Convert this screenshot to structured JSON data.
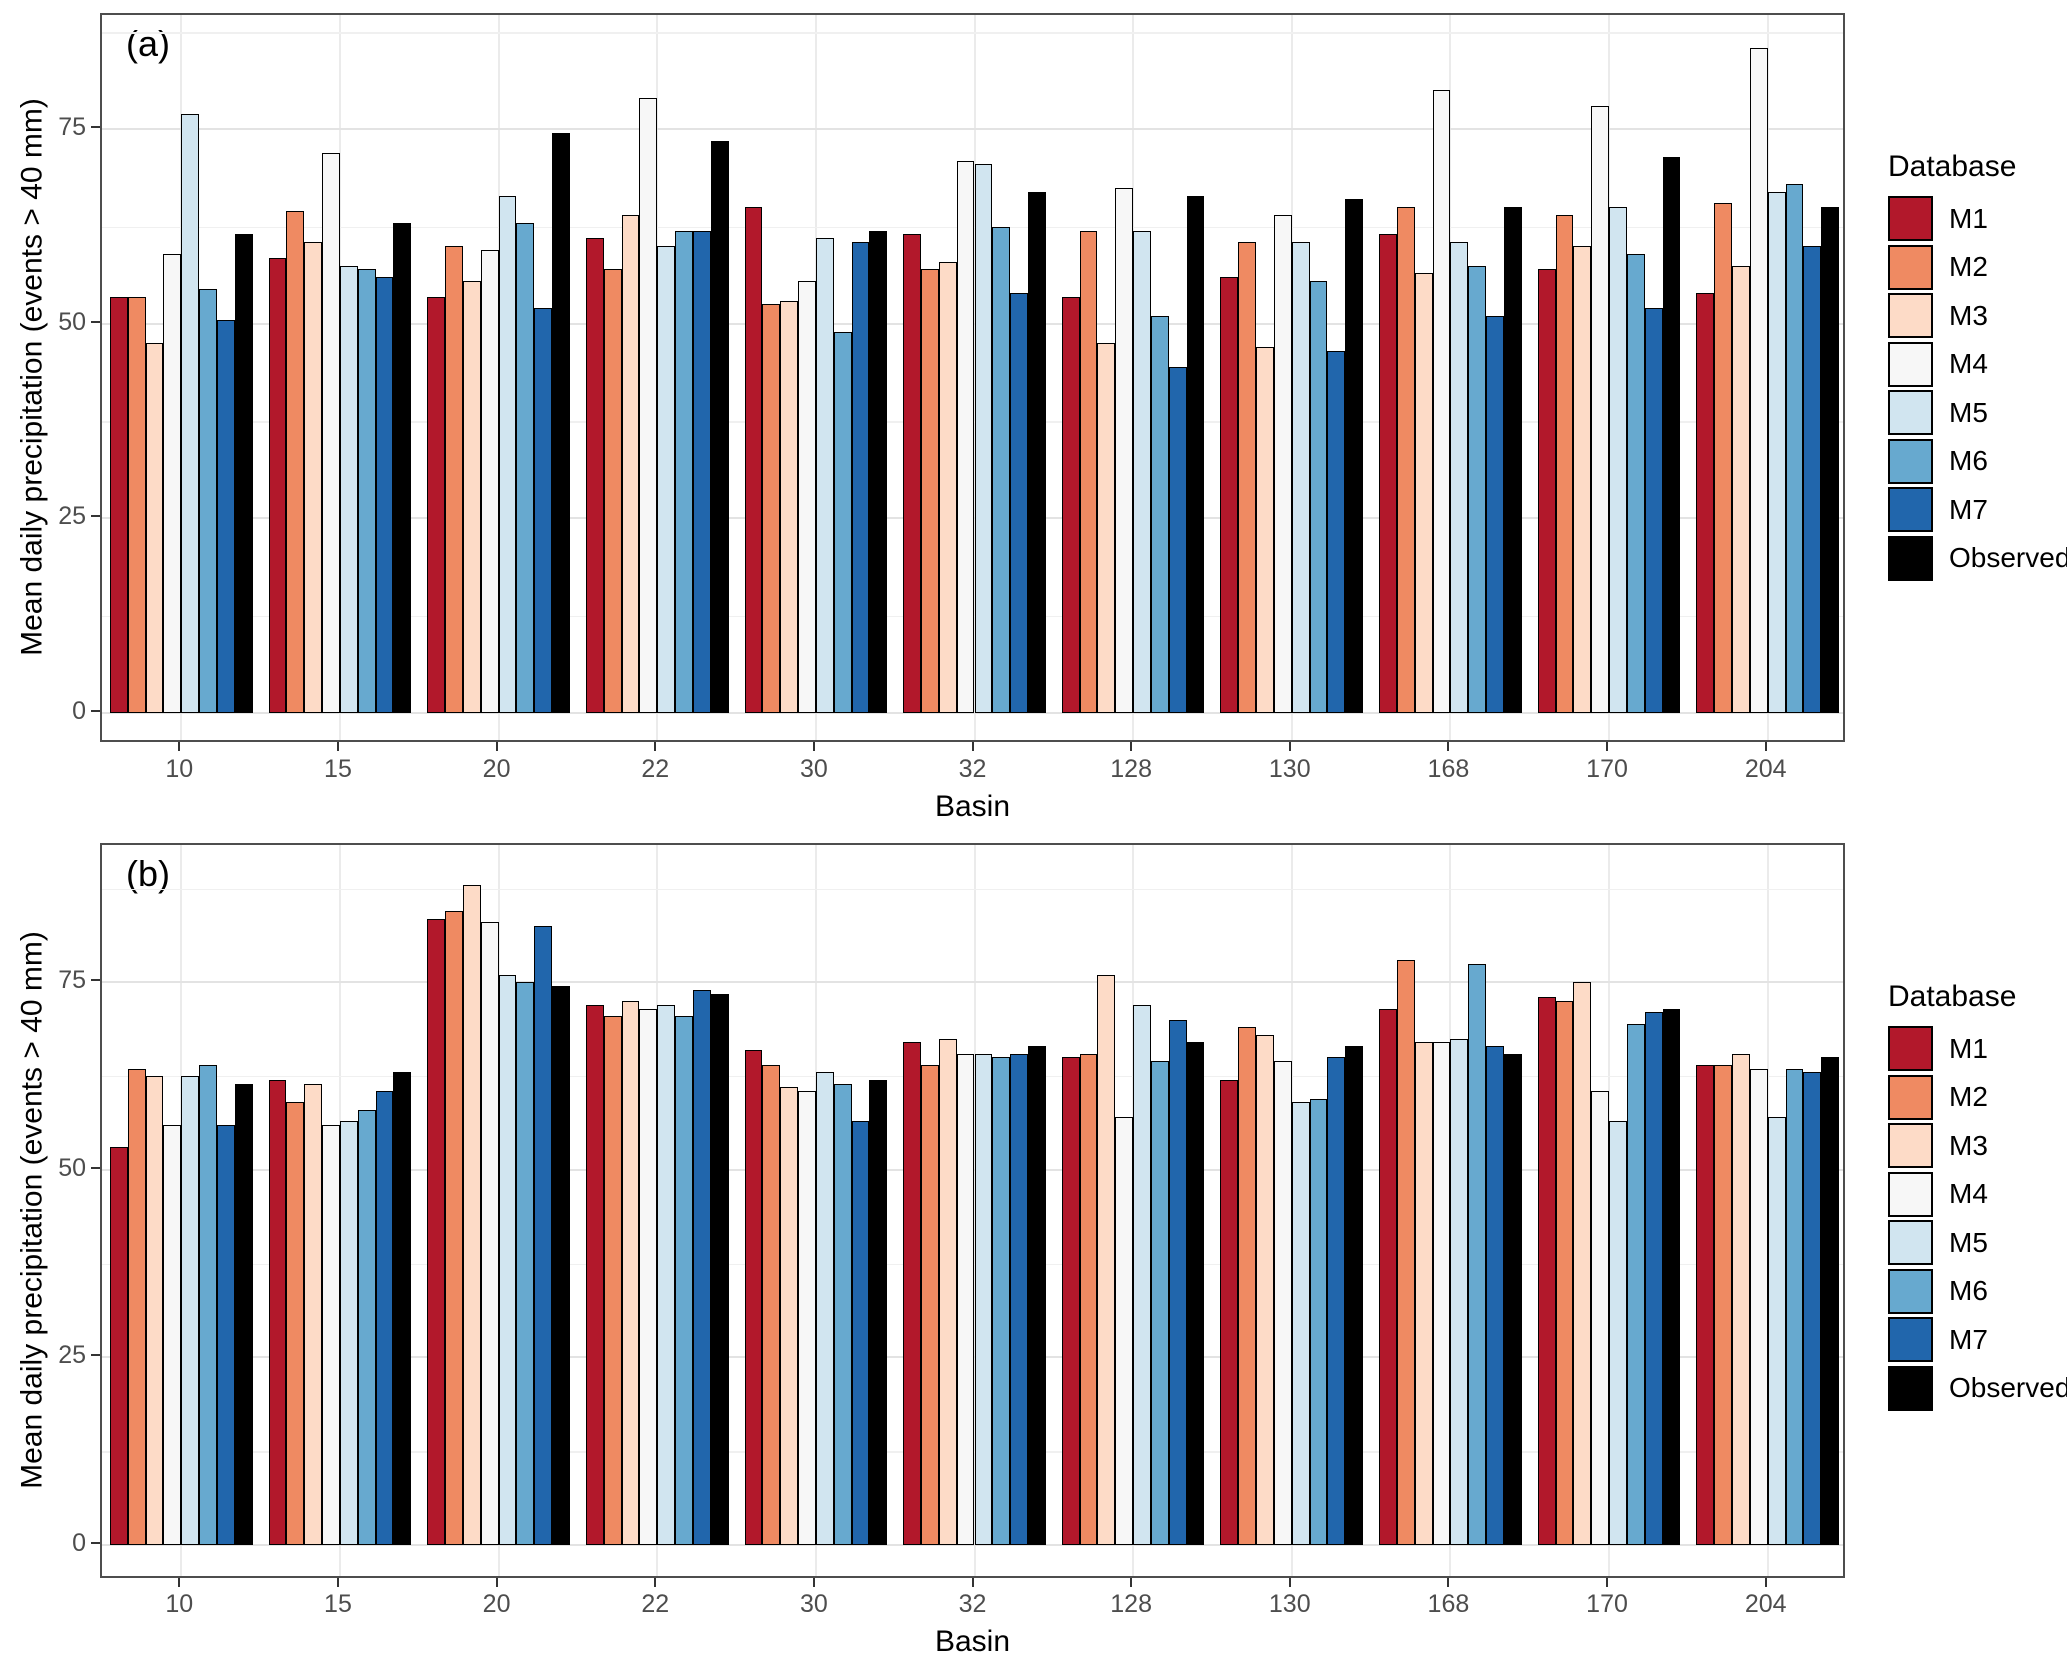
{
  "chart_data": [
    {
      "panel_label": "(a)",
      "type": "bar",
      "ylabel": "Mean daily precipitation (events > 40 mm)",
      "xlabel": "Basin",
      "categories": [
        "10",
        "15",
        "20",
        "22",
        "30",
        "32",
        "128",
        "130",
        "168",
        "170",
        "204"
      ],
      "y_ticks": [
        0,
        25,
        50,
        75
      ],
      "y_minor_ticks": [
        12.5,
        37.5,
        62.5,
        87.5
      ],
      "ylim": [
        0,
        89.7
      ],
      "grid": true,
      "bar_border_color": "#000000",
      "legend": {
        "title": "Database",
        "position": "right",
        "entries": [
          "M1",
          "M2",
          "M3",
          "M4",
          "M5",
          "M6",
          "M7",
          "Observed"
        ]
      },
      "series": [
        {
          "name": "M1",
          "color": "#b2182b",
          "values": [
            53.5,
            58.5,
            53.5,
            61,
            65,
            61.5,
            53.5,
            56,
            61.5,
            57,
            54
          ]
        },
        {
          "name": "M2",
          "color": "#ef8a62",
          "values": [
            53.5,
            64.5,
            60,
            57,
            52.5,
            57,
            62,
            60.5,
            65,
            64,
            65.5
          ]
        },
        {
          "name": "M3",
          "color": "#fddbc7",
          "values": [
            47.5,
            60.5,
            55.5,
            64,
            53,
            58,
            47.5,
            47,
            56.5,
            60,
            57.5
          ]
        },
        {
          "name": "M4",
          "color": "#f7f7f7",
          "values": [
            59,
            72,
            59.5,
            79,
            55.5,
            71,
            67.5,
            64,
            80,
            78,
            85.5
          ]
        },
        {
          "name": "M5",
          "color": "#d1e5f0",
          "values": [
            77,
            57.5,
            66.5,
            60,
            61,
            70.5,
            62,
            60.5,
            60.5,
            65,
            67
          ]
        },
        {
          "name": "M6",
          "color": "#67a9cf",
          "values": [
            54.5,
            57,
            63,
            62,
            49,
            62.5,
            51,
            55.5,
            57.5,
            59,
            68
          ]
        },
        {
          "name": "M7",
          "color": "#2166ac",
          "values": [
            50.5,
            56,
            52,
            62,
            60.5,
            54,
            44.5,
            46.5,
            51,
            52,
            60
          ]
        },
        {
          "name": "Observed",
          "color": "#000000",
          "values": [
            61.5,
            63,
            74.5,
            73.5,
            62,
            67,
            66.5,
            66,
            65,
            71.5,
            65
          ]
        }
      ]
    },
    {
      "panel_label": "(b)",
      "type": "bar",
      "ylabel": "Mean daily precipitation (events > 40 mm)",
      "xlabel": "Basin",
      "categories": [
        "10",
        "15",
        "20",
        "22",
        "30",
        "32",
        "128",
        "130",
        "168",
        "170",
        "204"
      ],
      "y_ticks": [
        0,
        25,
        50,
        75
      ],
      "y_minor_ticks": [
        12.5,
        37.5,
        62.5,
        87.5
      ],
      "ylim": [
        0,
        93.3
      ],
      "grid": true,
      "bar_border_color": "#000000",
      "legend": {
        "title": "Database",
        "position": "right",
        "entries": [
          "M1",
          "M2",
          "M3",
          "M4",
          "M5",
          "M6",
          "M7",
          "Observed"
        ]
      },
      "series": [
        {
          "name": "M1",
          "color": "#b2182b",
          "values": [
            53,
            62,
            83.5,
            72,
            66,
            67,
            65,
            62,
            71.5,
            73,
            64
          ]
        },
        {
          "name": "M2",
          "color": "#ef8a62",
          "values": [
            63.5,
            59,
            84.5,
            70.5,
            64,
            64,
            65.5,
            69,
            78,
            72.5,
            64
          ]
        },
        {
          "name": "M3",
          "color": "#fddbc7",
          "values": [
            62.5,
            61.5,
            88,
            72.5,
            61,
            67.5,
            76,
            68,
            67,
            75,
            65.5
          ]
        },
        {
          "name": "M4",
          "color": "#f7f7f7",
          "values": [
            56,
            56,
            83,
            71.5,
            60.5,
            65.5,
            57,
            64.5,
            67,
            60.5,
            63.5
          ]
        },
        {
          "name": "M5",
          "color": "#d1e5f0",
          "values": [
            62.5,
            56.5,
            76,
            72,
            63,
            65.5,
            72,
            59,
            67.5,
            56.5,
            57
          ]
        },
        {
          "name": "M6",
          "color": "#67a9cf",
          "values": [
            64,
            58,
            75,
            70.5,
            61.5,
            65,
            64.5,
            59.5,
            77.5,
            69.5,
            63.5
          ]
        },
        {
          "name": "M7",
          "color": "#2166ac",
          "values": [
            56,
            60.5,
            82.5,
            74,
            56.5,
            65.5,
            70,
            65,
            66.5,
            71,
            63
          ]
        },
        {
          "name": "Observed",
          "color": "#000000",
          "values": [
            61.5,
            63,
            74.5,
            73.5,
            62,
            66.5,
            67,
            66.5,
            65.5,
            71.5,
            65
          ]
        }
      ]
    }
  ]
}
